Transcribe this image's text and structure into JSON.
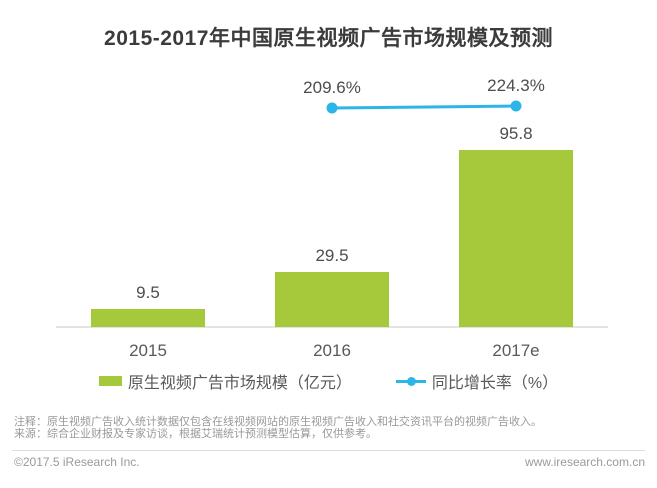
{
  "title": "2015-2017年中国原生视频广告市场规模及预测",
  "chart_data": {
    "type": "bar",
    "categories": [
      "2015",
      "2016",
      "2017e"
    ],
    "series": [
      {
        "name": "原生视频广告市场规模（亿元）",
        "type": "bar",
        "values": [
          9.5,
          29.5,
          95.8
        ],
        "labels": [
          "9.5",
          "29.5",
          "95.8"
        ],
        "color": "#a6c93c"
      },
      {
        "name": "同比增长率（%）",
        "type": "line",
        "values": [
          null,
          209.6,
          224.3
        ],
        "labels": [
          "",
          "209.6%",
          "224.3%"
        ],
        "color": "#2cb6e8"
      }
    ],
    "title": "2015-2017年中国原生视频广告市场规模及预测",
    "xlabel": "",
    "ylabel": "",
    "ylim": [
      0,
      110
    ],
    "grid": false,
    "legend_position": "bottom"
  },
  "legend": {
    "items": [
      {
        "label": "原生视频广告市场规模（亿元）",
        "swatch": "green-bar-swatch",
        "color": "#a6c93c"
      },
      {
        "label": "同比增长率（%）",
        "swatch": "cyan-line-dot-swatch",
        "color": "#2cb6e8"
      }
    ]
  },
  "footnotes": {
    "note": "注释：原生视频广告收入统计数据仅包含在线视频网站的原生视频广告收入和社交资讯平台的视频广告收入。",
    "source": "来源：综合企业财报及专家访谈，根据艾瑞统计预测模型估算，仅供参考。"
  },
  "footer": {
    "copyright": "©2017.5 iResearch Inc.",
    "website": "www.iresearch.com.cn"
  },
  "colors": {
    "bar": "#a6c93c",
    "line": "#2cb6e8",
    "title_text": "#3b3b3b",
    "label_text": "#4d4d4d",
    "axis_line": "#e2e2e2",
    "footnote_text": "#999999"
  }
}
